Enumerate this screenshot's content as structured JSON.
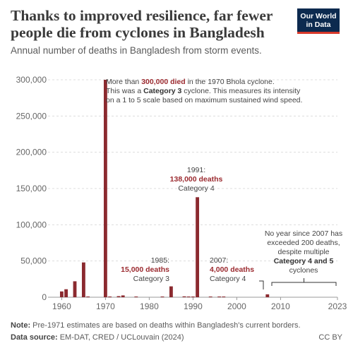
{
  "header": {
    "title": "Thanks to improved resilience, far fewer people die from cyclones in Bangladesh",
    "subtitle": "Annual number of deaths in Bangladesh from storm events.",
    "logo_line1": "Our World",
    "logo_line2": "in Data"
  },
  "chart_data": {
    "type": "bar",
    "x_range": [
      1958,
      2023
    ],
    "ylim": [
      0,
      300000
    ],
    "y_ticks": [
      0,
      50000,
      100000,
      150000,
      200000,
      250000,
      300000
    ],
    "y_tick_labels": [
      "0",
      "50,000",
      "100,000",
      "150,000",
      "200,000",
      "250,000",
      "300,000"
    ],
    "x_ticks": [
      1960,
      1970,
      1980,
      1990,
      2000,
      2010,
      2023
    ],
    "x_tick_labels": [
      "1960",
      "1970",
      "1980",
      "1990",
      "2000",
      "2010",
      "2023"
    ],
    "bar_color": "#8b2a2f",
    "data": [
      {
        "year": 1960,
        "deaths": 8000
      },
      {
        "year": 1961,
        "deaths": 11000
      },
      {
        "year": 1963,
        "deaths": 22000
      },
      {
        "year": 1965,
        "deaths": 48000
      },
      {
        "year": 1966,
        "deaths": 1000
      },
      {
        "year": 1970,
        "deaths": 300000
      },
      {
        "year": 1971,
        "deaths": 400
      },
      {
        "year": 1973,
        "deaths": 1500
      },
      {
        "year": 1974,
        "deaths": 2500
      },
      {
        "year": 1977,
        "deaths": 500
      },
      {
        "year": 1983,
        "deaths": 400
      },
      {
        "year": 1985,
        "deaths": 15000
      },
      {
        "year": 1988,
        "deaths": 1200
      },
      {
        "year": 1989,
        "deaths": 800
      },
      {
        "year": 1990,
        "deaths": 300
      },
      {
        "year": 1991,
        "deaths": 138000
      },
      {
        "year": 1994,
        "deaths": 300
      },
      {
        "year": 1996,
        "deaths": 600
      },
      {
        "year": 1997,
        "deaths": 500
      },
      {
        "year": 2007,
        "deaths": 4000
      }
    ],
    "annotations": {
      "bhola": {
        "pre": "More than ",
        "highlight": "300,000 died",
        "post": " in the 1970 Bhola cyclone.",
        "line2_pre": "This was a ",
        "line2_bold": "Category 3",
        "line2_post": " cyclone. This measures its intensity",
        "line3": "on a 1 to 5 scale based on maximum sustained wind speed."
      },
      "y1991": {
        "year": "1991:",
        "deaths": "138,000 deaths",
        "category": "Category 4"
      },
      "y1985": {
        "year": "1985:",
        "deaths": "15,000 deaths",
        "category": "Category 3"
      },
      "y2007": {
        "year": "2007:",
        "deaths": "4,000 deaths",
        "category": "Category 4"
      },
      "since2007": {
        "line1": "No year since 2007 has",
        "line2": "exceeded 200 deaths,",
        "line3": "despite multiple",
        "line4": "Category 4 and 5",
        "line5": "cyclones"
      }
    }
  },
  "footer": {
    "note_label": "Note:",
    "note_text": " Pre-1971 estimates are based on deaths within Bangladesh's current borders.",
    "source_label": "Data source:",
    "source_text": " EM-DAT, CRED / UCLouvain (2024)",
    "license": "CC BY"
  }
}
